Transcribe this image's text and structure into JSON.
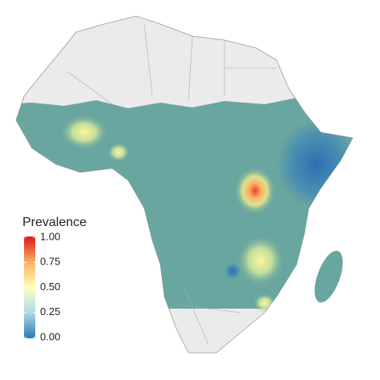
{
  "legend": {
    "title": "Prevalence",
    "ticks": [
      {
        "value": 0,
        "label": "0.00"
      },
      {
        "value": 0.25,
        "label": "0.25"
      },
      {
        "value": 0.5,
        "label": "0.50"
      },
      {
        "value": 0.75,
        "label": "0.75"
      },
      {
        "value": 1,
        "label": "1.00"
      }
    ],
    "colors": [
      "#2c7bb6",
      "#abd9e9",
      "#ffffbf",
      "#fdae61",
      "#d7191c"
    ]
  }
}
